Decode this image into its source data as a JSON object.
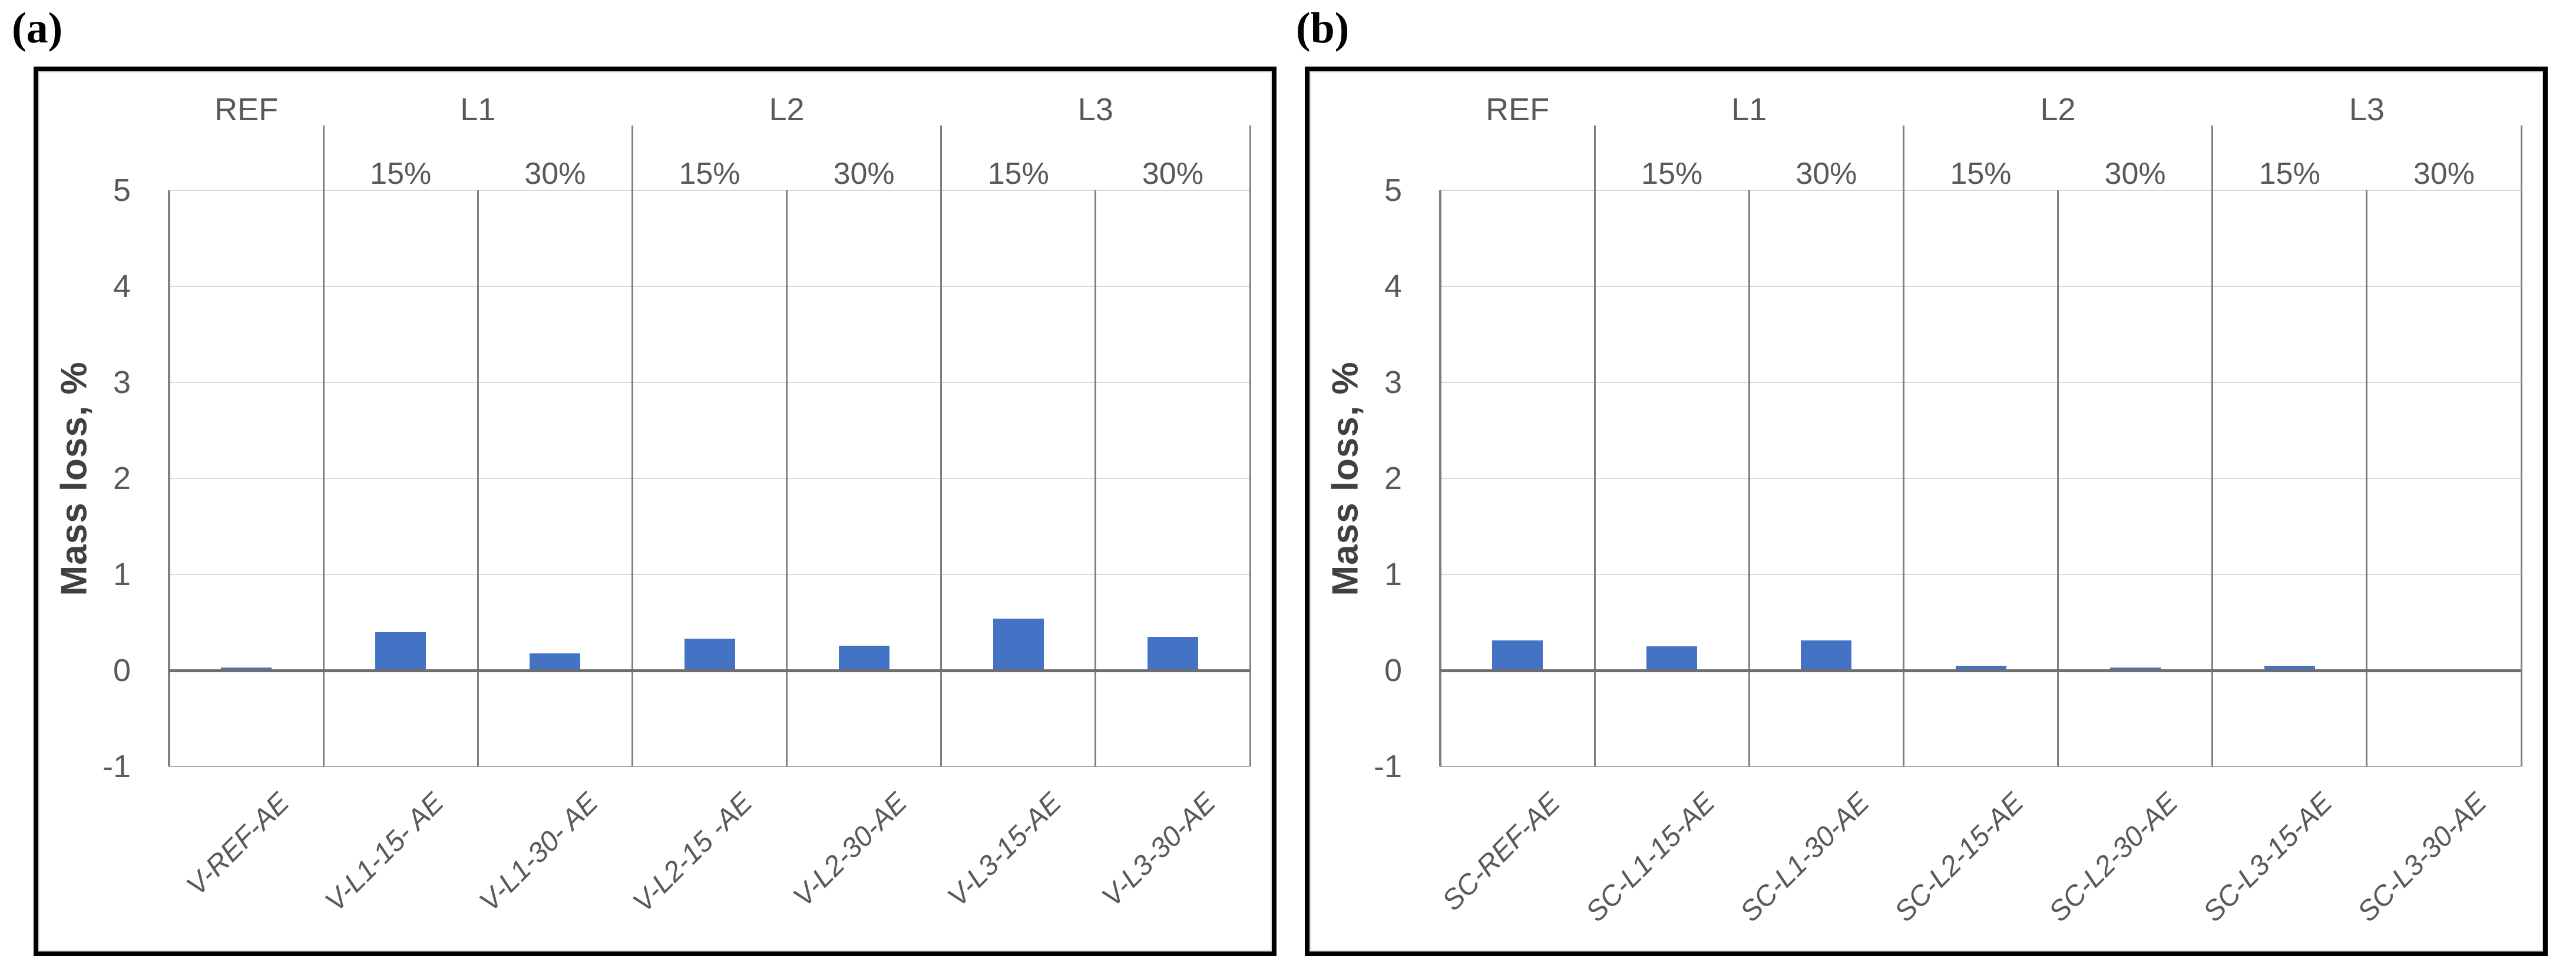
{
  "figure": {
    "panel_a_tag": "(a)",
    "panel_b_tag": "(b)"
  },
  "styles": {
    "bar_color": "#4472C4",
    "grid_color": "#D9D9D9",
    "line_color": "#808080",
    "zero_line_color": "#6E6E6E",
    "text_color": "#595959",
    "panel_border_color": "#000000"
  },
  "chart_data": [
    {
      "type": "bar",
      "panel_tag": "(a)",
      "ylabel": "Mass loss, %",
      "ylim": [
        -1,
        5
      ],
      "yticks": [
        "5",
        "4",
        "3",
        "2",
        "1",
        "0",
        "-1"
      ],
      "grid": true,
      "legend_position": "none",
      "bar_color": "#4472C4",
      "categories": [
        "V-REF-AE",
        "V-L1-15- AE",
        "V-L1-30- AE",
        "V-L2-15 -AE",
        "V-L2-30-AE",
        "V-L3-15-AE",
        "V-L3-30-AE"
      ],
      "values": [
        0.03,
        0.4,
        0.18,
        0.33,
        0.26,
        0.54,
        0.35
      ],
      "group_headers": [
        {
          "label": "REF",
          "start": 0,
          "end": 0
        },
        {
          "label": "L1",
          "start": 1,
          "end": 2
        },
        {
          "label": "L2",
          "start": 3,
          "end": 4
        },
        {
          "label": "L3",
          "start": 5,
          "end": 6
        }
      ],
      "column_sub_labels": [
        "",
        "15%",
        "30%",
        "15%",
        "30%",
        "15%",
        "30%"
      ]
    },
    {
      "type": "bar",
      "panel_tag": "(b)",
      "ylabel": "Mass loss, %",
      "ylim": [
        -1,
        5
      ],
      "yticks": [
        "5",
        "4",
        "3",
        "2",
        "1",
        "0",
        "-1"
      ],
      "grid": true,
      "legend_position": "none",
      "bar_color": "#4472C4",
      "categories": [
        "SC-REF-AE",
        "SC-L1-15-AE",
        "SC-L1-30-AE",
        "SC-L2-15-AE",
        "SC-L2-30-AE",
        "SC-L3-15-AE",
        "SC-L3-30-AE"
      ],
      "values": [
        0.31,
        0.25,
        0.31,
        0.05,
        0.03,
        0.05,
        0.0
      ],
      "group_headers": [
        {
          "label": "REF",
          "start": 0,
          "end": 0
        },
        {
          "label": "L1",
          "start": 1,
          "end": 2
        },
        {
          "label": "L2",
          "start": 3,
          "end": 4
        },
        {
          "label": "L3",
          "start": 5,
          "end": 6
        }
      ],
      "column_sub_labels": [
        "",
        "15%",
        "30%",
        "15%",
        "30%",
        "15%",
        "30%"
      ]
    }
  ]
}
